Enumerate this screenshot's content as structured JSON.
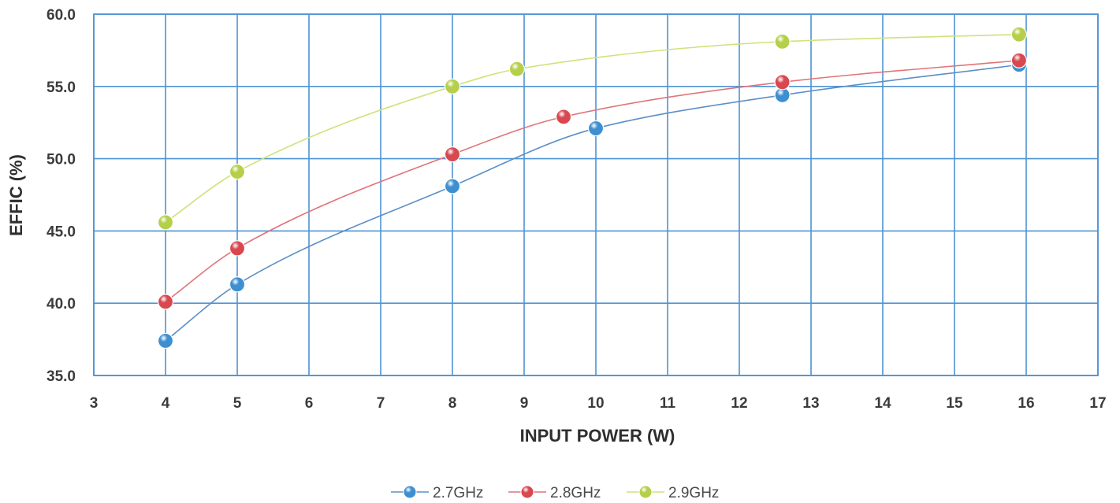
{
  "chart_data": {
    "type": "line",
    "xlabel": "INPUT POWER (W)",
    "ylabel": "EFFIC (%)",
    "xlim": [
      3,
      17
    ],
    "ylim": [
      35,
      60
    ],
    "xticks": [
      3,
      4,
      5,
      6,
      7,
      8,
      9,
      10,
      11,
      12,
      13,
      14,
      15,
      16,
      17
    ],
    "yticks": [
      35,
      40,
      45,
      50,
      55,
      60
    ],
    "ytick_labels": [
      "35.0",
      "40.0",
      "45.0",
      "50.0",
      "55.0",
      "60.0"
    ],
    "grid": true,
    "smooth": true,
    "legend_position": "bottom",
    "series": [
      {
        "name": "2.7GHz",
        "color": "#3d8fd1",
        "line_color": "#5b8fc7",
        "x": [
          4,
          5,
          8,
          10,
          12.6,
          15.9
        ],
        "y": [
          37.4,
          41.3,
          48.1,
          52.1,
          54.4,
          56.5
        ]
      },
      {
        "name": "2.8GHz",
        "color": "#d9474f",
        "line_color": "#e0747a",
        "x": [
          4,
          5,
          8,
          9.55,
          12.6,
          15.9
        ],
        "y": [
          40.1,
          43.8,
          50.3,
          52.9,
          55.3,
          56.8
        ]
      },
      {
        "name": "2.9GHz",
        "color": "#b5cf49",
        "line_color": "#cfe27a",
        "x": [
          4,
          5,
          8,
          8.9,
          12.6,
          15.9
        ],
        "y": [
          45.6,
          49.1,
          55.0,
          56.2,
          58.1,
          58.6
        ]
      }
    ]
  }
}
